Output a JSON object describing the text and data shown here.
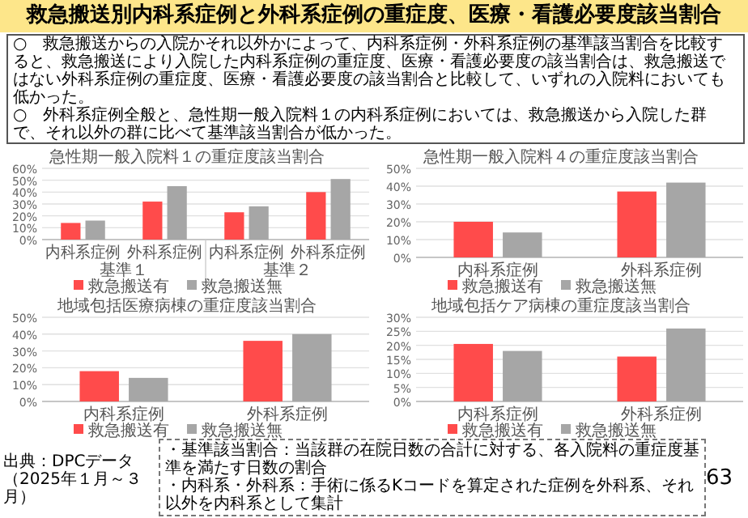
{
  "chart_data": [
    {
      "type": "other",
      "title": "救急搬送別内科系症例と外科系症例の重症度、医療・看護必要度該当割合",
      "annotations": [
        "○　救急搬送からの入院かそれ以外かによって、内科系症例・外科系症例の基準該当割合を比較すると、救急搬送により入院した内科系症例の重症度、医療・看護必要度の該当割合は、救急搬送ではない外科系症例の重症度、医療・看護必要度の該当割合と比較して、いずれの入院料においても低かった。",
        "○　外科系症例全般と、急性期一般入院料１の内科系症例においては、救急搬送から入院した群で、それ以外の群に比べて基準該当割合が低かった。",
        "・基準該当割合：当該群の在院日数の合計に対する、各入院料の重症度基準を満たす日数の割合",
        "・内科系・外科系：手術に係るKコードを算定された症例を外科系、それ以外を内科系として集計",
        "出典：DPCデータ（2025年１月～３月）",
        "63"
      ]
    },
    {
      "type": "bar",
      "title": "急性期一般入院料１の重症度該当割合",
      "categories": [
        "内科系症例",
        "外科系症例",
        "内科系症例",
        "外科系症例"
      ],
      "annotations": [
        "基準１",
        "基準２"
      ],
      "series": [
        {
          "name": "救急搬送有",
          "color": "#ff4b4b",
          "values": [
            14,
            32,
            23,
            40
          ]
        },
        {
          "name": "救急搬送無",
          "color": "#a6a6a6",
          "values": [
            16,
            45,
            28,
            51
          ]
        }
      ],
      "ylim": [
        0,
        60
      ],
      "yticks": [
        {
          "value": 0,
          "label": "0%"
        },
        {
          "value": 10,
          "label": "10%"
        },
        {
          "value": 20,
          "label": "20%"
        },
        {
          "value": 30,
          "label": "30%"
        },
        {
          "value": 40,
          "label": "40%"
        },
        {
          "value": 50,
          "label": "50%"
        },
        {
          "value": 60,
          "label": "60%"
        }
      ],
      "grid": "y",
      "legend": "bottom"
    },
    {
      "type": "bar",
      "title": "急性期一般入院料４の重症度該当割合",
      "categories": [
        "内科系症例",
        "外科系症例"
      ],
      "series": [
        {
          "name": "救急搬送有",
          "color": "#ff4b4b",
          "values": [
            20,
            37
          ]
        },
        {
          "name": "救急搬送無",
          "color": "#a6a6a6",
          "values": [
            14,
            42
          ]
        }
      ],
      "ylim": [
        0,
        50
      ],
      "yticks": [
        {
          "value": 0,
          "label": "0%"
        },
        {
          "value": 10,
          "label": "10%"
        },
        {
          "value": 20,
          "label": "20%"
        },
        {
          "value": 30,
          "label": "30%"
        },
        {
          "value": 40,
          "label": "40%"
        },
        {
          "value": 50,
          "label": "50%"
        }
      ],
      "grid": "y",
      "legend": "bottom"
    },
    {
      "type": "bar",
      "title": "地域包括医療病棟の重症度該当割合",
      "categories": [
        "内科系症例",
        "外科系症例"
      ],
      "series": [
        {
          "name": "救急搬送有",
          "color": "#ff4b4b",
          "values": [
            18,
            36
          ]
        },
        {
          "name": "救急搬送無",
          "color": "#a6a6a6",
          "values": [
            14,
            40
          ]
        }
      ],
      "ylim": [
        0,
        50
      ],
      "yticks": [
        {
          "value": 0,
          "label": "0%"
        },
        {
          "value": 10,
          "label": "10%"
        },
        {
          "value": 20,
          "label": "20%"
        },
        {
          "value": 30,
          "label": "30%"
        },
        {
          "value": 40,
          "label": "40%"
        },
        {
          "value": 50,
          "label": "50%"
        }
      ],
      "grid": "y",
      "legend": "bottom"
    },
    {
      "type": "bar",
      "title": "地域包括ケア病棟の重症度該当割合",
      "categories": [
        "内科系症例",
        "外科系症例"
      ],
      "series": [
        {
          "name": "救急搬送有",
          "color": "#ff4b4b",
          "values": [
            20.5,
            16
          ]
        },
        {
          "name": "救急搬送無",
          "color": "#a6a6a6",
          "values": [
            18,
            26
          ]
        }
      ],
      "ylim": [
        0,
        30
      ],
      "yticks": [
        {
          "value": 0,
          "label": "0%"
        },
        {
          "value": 5,
          "label": "5%"
        },
        {
          "value": 10,
          "label": "10%"
        },
        {
          "value": 15,
          "label": "15%"
        },
        {
          "value": 20,
          "label": "20%"
        },
        {
          "value": 25,
          "label": "25%"
        },
        {
          "value": 30,
          "label": "30%"
        }
      ],
      "grid": "y",
      "legend": "bottom"
    }
  ]
}
